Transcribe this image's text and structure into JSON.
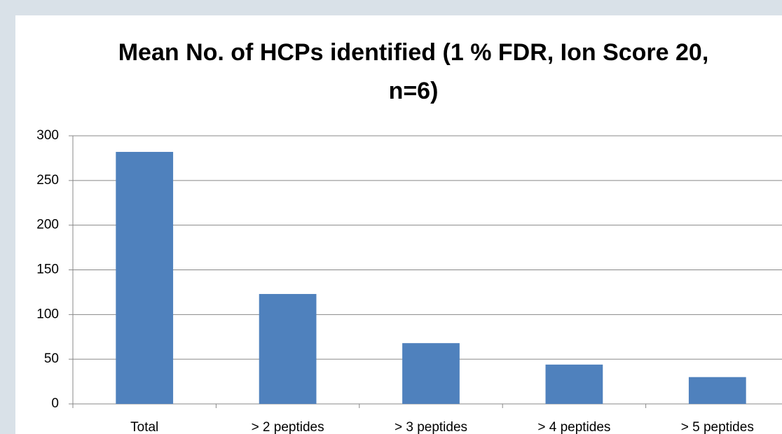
{
  "chart_data": {
    "type": "bar",
    "title": "Mean No. of HCPs identified (1 % FDR, Ion Score 20, n=6)",
    "categories": [
      "Total",
      "> 2 peptides",
      "> 3 peptides",
      "> 4 peptides",
      "> 5 peptides"
    ],
    "values": [
      282,
      123,
      68,
      44,
      30
    ],
    "color": "#4f81bd",
    "ylim": [
      0,
      300
    ],
    "yticks": [
      0,
      50,
      100,
      150,
      200,
      250,
      300
    ],
    "grid": true
  }
}
